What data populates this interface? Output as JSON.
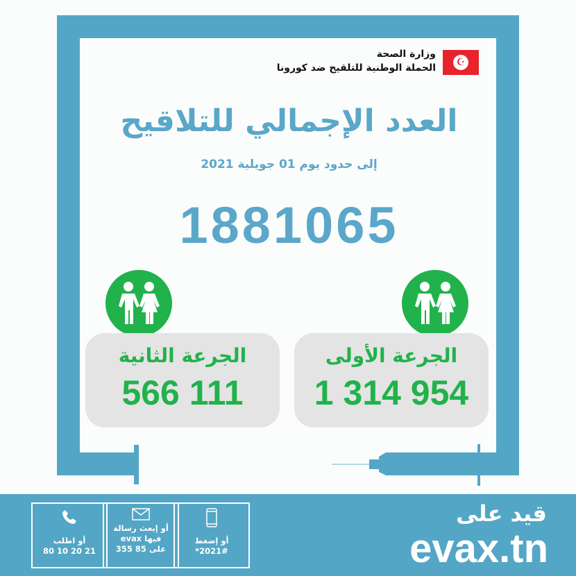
{
  "colors": {
    "frame": "#53a6c5",
    "accent_text": "#5aa7c9",
    "green": "#21b24b",
    "card": "#e4e4e4",
    "flag": "#e8232c"
  },
  "header": {
    "ministry": "وزارة الصحة",
    "campaign": "الحملة الوطنية للتلقيح ضد كورونا",
    "flag_icon": "tunisia-flag-icon"
  },
  "title": "العدد الإجمالي للتلاقيح",
  "subtitle": "إلى حدود يوم 01 جويلية 2021",
  "total": "1881065",
  "doses": [
    {
      "label": "الجرعة الأولى",
      "value": "1 314 954"
    },
    {
      "label": "الجرعة الثانية",
      "value": "566 111"
    }
  ],
  "footer": {
    "cta_line1": "قيد على",
    "cta_line2": "evax.tn",
    "options": [
      {
        "icon": "phone-icon",
        "line1": "أو اطلب",
        "line2": "80 10 20 21"
      },
      {
        "icon": "envelope-icon",
        "line1": "أو إبعث رسالة",
        "line2": "فيها evax",
        "line3": "على 85 355"
      },
      {
        "icon": "mobile-icon",
        "line1": "أو إضغط",
        "line2": "*2021#"
      }
    ]
  }
}
